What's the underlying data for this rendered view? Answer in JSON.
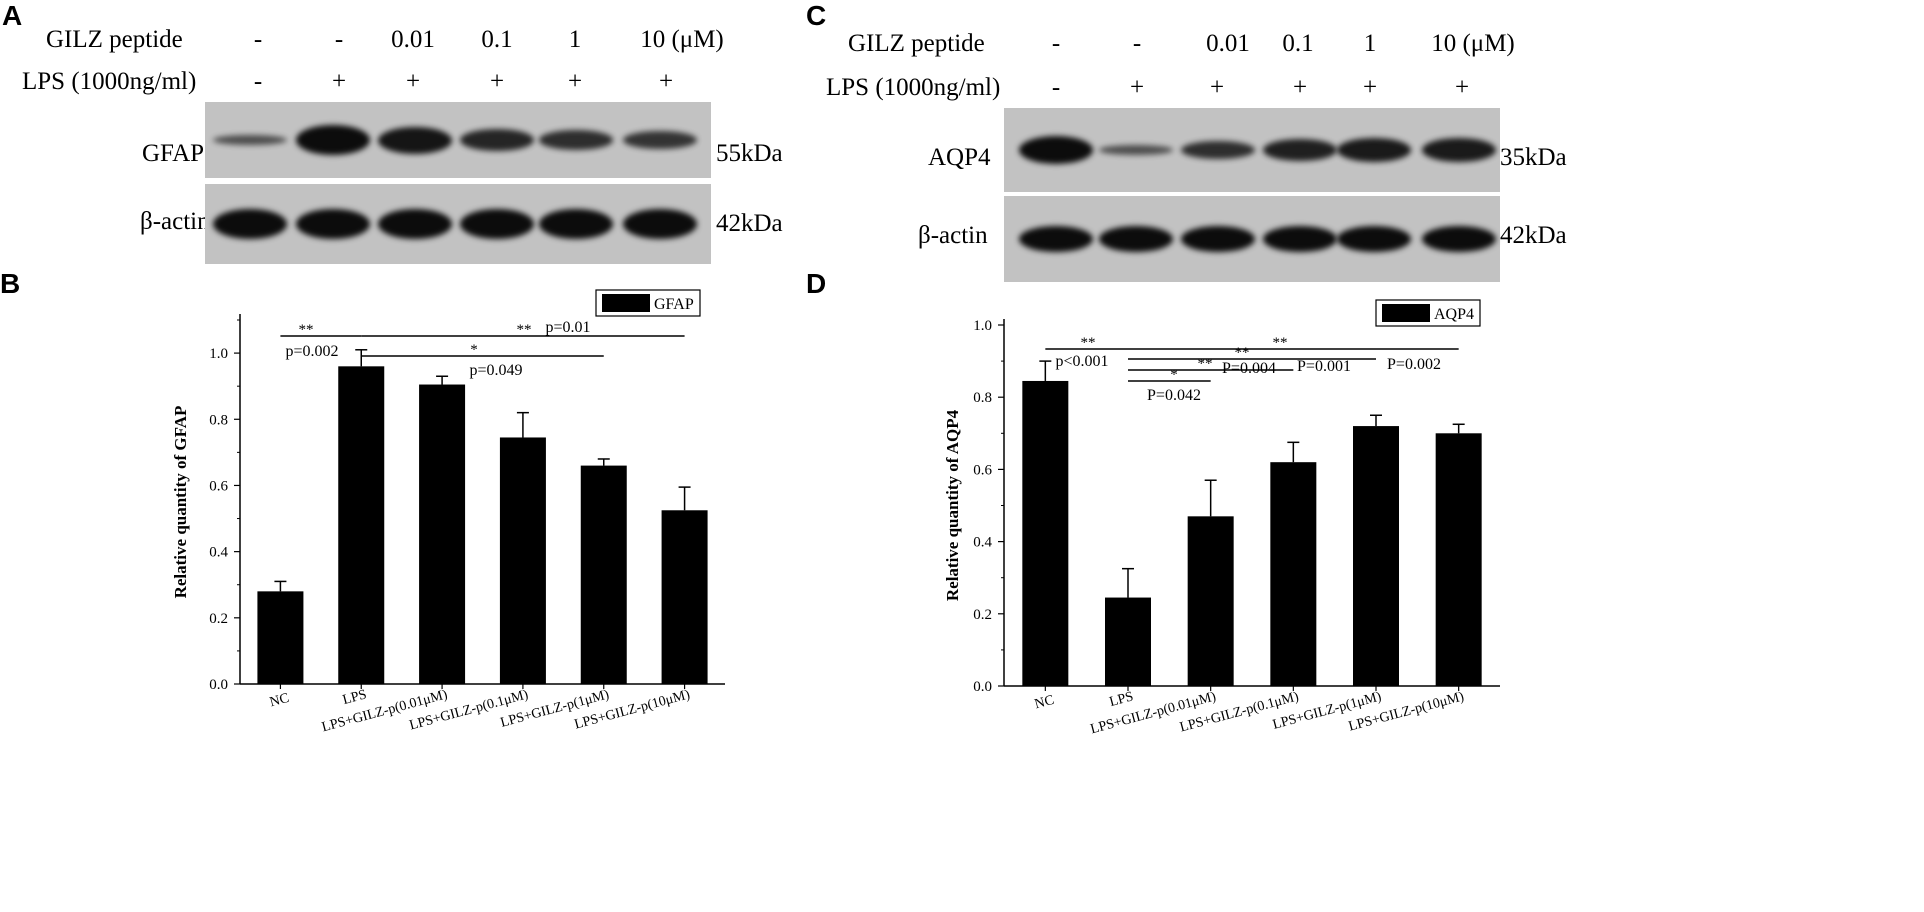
{
  "panels": {
    "A": {
      "letter": "A",
      "row1_label": "GILZ peptide",
      "row1_values": [
        "-",
        "-",
        "0.01",
        "0.1",
        "1",
        "10 (μM)"
      ],
      "row2_label": "LPS (1000ng/ml)",
      "row2_values": [
        "-",
        "+",
        "+",
        "+",
        "+",
        "+"
      ],
      "blot1_label": "GFAP",
      "blot1_size": "55kDa",
      "blot1_band_intensity": [
        0.35,
        1.0,
        0.9,
        0.75,
        0.65,
        0.6
      ],
      "blot2_label": "β-actin",
      "blot2_size": "42kDa",
      "blot2_band_intensity": [
        1,
        1,
        1,
        1,
        1,
        1
      ]
    },
    "C": {
      "letter": "C",
      "row1_label": "GILZ peptide",
      "row1_values": [
        "-",
        "-",
        "0.01",
        "0.1",
        "1",
        "10 (μM)"
      ],
      "row2_label": "LPS (1000ng/ml)",
      "row2_values": [
        "-",
        "+",
        "+",
        "+",
        "+",
        "+"
      ],
      "blot1_label": "AQP4",
      "blot1_size": "35kDa",
      "blot1_band_intensity": [
        1.0,
        0.35,
        0.65,
        0.8,
        0.85,
        0.85
      ],
      "blot2_label": "β-actin",
      "blot2_size": "42kDa",
      "blot2_band_intensity": [
        1,
        1,
        1,
        1,
        1,
        1
      ]
    },
    "B": {
      "letter": "B"
    },
    "D": {
      "letter": "D"
    }
  },
  "chart_data": [
    {
      "type": "bar",
      "panel": "B",
      "categories": [
        "NC",
        "LPS",
        "LPS+GILZ-p(0.01μM)",
        "LPS+GILZ-p(0.1μM)",
        "LPS+GILZ-p(1μM)",
        "LPS+GILZ-p(10μM)"
      ],
      "series": [
        {
          "name": "GFAP",
          "values": [
            0.28,
            0.96,
            0.905,
            0.745,
            0.66,
            0.525
          ],
          "errors": [
            0.03,
            0.05,
            0.025,
            0.075,
            0.02,
            0.07
          ]
        }
      ],
      "ylabel": "Relative quantity of GFAP",
      "ylim": [
        0,
        1.1
      ],
      "yticks": [
        "0.0",
        "0.2",
        "0.4",
        "0.6",
        "0.8",
        "1.0"
      ],
      "legend": "top-right",
      "annotations": [
        {
          "from": 0,
          "to": 1,
          "star": "**",
          "p": "p=0.002"
        },
        {
          "from": 1,
          "to": 4,
          "star": "*",
          "p": "p=0.049"
        },
        {
          "from": 1,
          "to": 5,
          "star": "**",
          "p": "p=0.01"
        }
      ]
    },
    {
      "type": "bar",
      "panel": "D",
      "categories": [
        "NC",
        "LPS",
        "LPS+GILZ-p(0.01μM)",
        "LPS+GILZ-p(0.1μM)",
        "LPS+GILZ-p(1μM)",
        "LPS+GILZ-p(10μM)"
      ],
      "series": [
        {
          "name": "AQP4",
          "values": [
            0.845,
            0.245,
            0.47,
            0.62,
            0.72,
            0.7
          ],
          "errors": [
            0.055,
            0.08,
            0.1,
            0.055,
            0.03,
            0.025
          ]
        }
      ],
      "ylabel": "Relative quantity of AQP4",
      "ylim": [
        0,
        1.0
      ],
      "yticks": [
        "0.0",
        "0.2",
        "0.4",
        "0.6",
        "0.8",
        "1.0"
      ],
      "legend": "top-right",
      "annotations": [
        {
          "from": 0,
          "to": 1,
          "star": "**",
          "p": "p<0.001"
        },
        {
          "from": 1,
          "to": 2,
          "star": "*",
          "p": "P=0.042"
        },
        {
          "from": 1,
          "to": 3,
          "star": "**",
          "p": "P=0.004"
        },
        {
          "from": 1,
          "to": 4,
          "star": "**",
          "p": "P=0.001"
        },
        {
          "from": 1,
          "to": 5,
          "star": "**",
          "p": "P=0.002"
        }
      ]
    }
  ]
}
